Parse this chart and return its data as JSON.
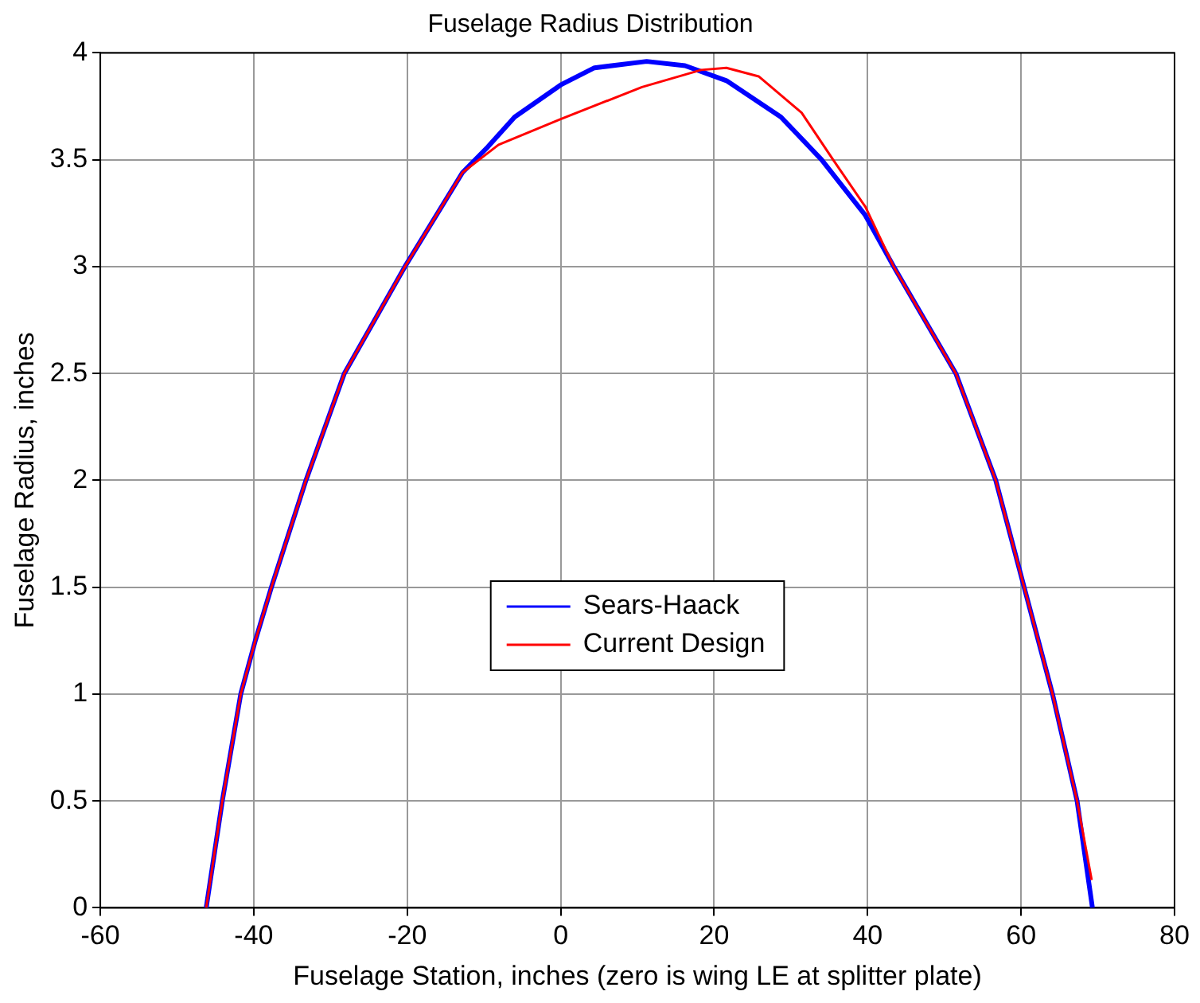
{
  "chart_data": {
    "type": "line",
    "title": "Fuselage Radius Distribution",
    "xlabel": "Fuselage Station, inches (zero is wing LE at splitter plate)",
    "ylabel": "Fuselage Radius, inches",
    "xlim": [
      -60,
      80
    ],
    "xticks": [
      -60,
      -40,
      -20,
      0,
      20,
      40,
      60,
      80
    ],
    "ylim": [
      0,
      4
    ],
    "yticks": [
      0,
      0.5,
      1,
      1.5,
      2,
      2.5,
      3,
      3.5,
      4
    ],
    "grid": true,
    "legend": "center",
    "line_style": "solid",
    "marker": "none",
    "series": [
      {
        "name": "Sears-Haack",
        "color": "#0000ff",
        "x": [
          -46.2,
          -44.1,
          -41.7,
          -39.8,
          -37.7,
          -33.2,
          -28.2,
          -20.3,
          -12.8,
          -9.5,
          -6,
          0,
          4.4,
          11.2,
          16.2,
          21.6,
          28.7,
          34,
          39.7,
          43.4,
          51.5,
          56.7,
          60.4,
          64.1,
          67.3,
          69.3
        ],
        "values": [
          0,
          0.5,
          1,
          1.25,
          1.5,
          2,
          2.5,
          3,
          3.44,
          3.56,
          3.7,
          3.85,
          3.93,
          3.96,
          3.94,
          3.87,
          3.7,
          3.5,
          3.24,
          3,
          2.5,
          2,
          1.5,
          1,
          0.5,
          0
        ]
      },
      {
        "name": "Current Design",
        "color": "#ff0000",
        "x": [
          -46.2,
          -44.1,
          -41.7,
          -39.8,
          -37.7,
          -33.2,
          -28.2,
          -20.3,
          -12.8,
          -8.1,
          0,
          10.6,
          18.3,
          21.6,
          25.8,
          31.4,
          35.5,
          39.7,
          43.4,
          51.5,
          56.7,
          60.4,
          64.1,
          67.3,
          69.2
        ],
        "values": [
          0,
          0.5,
          1,
          1.25,
          1.5,
          2,
          2.5,
          3,
          3.44,
          3.57,
          3.69,
          3.84,
          3.92,
          3.93,
          3.89,
          3.72,
          3.5,
          3.28,
          3,
          2.5,
          2,
          1.5,
          1,
          0.5,
          0.13
        ]
      }
    ]
  }
}
